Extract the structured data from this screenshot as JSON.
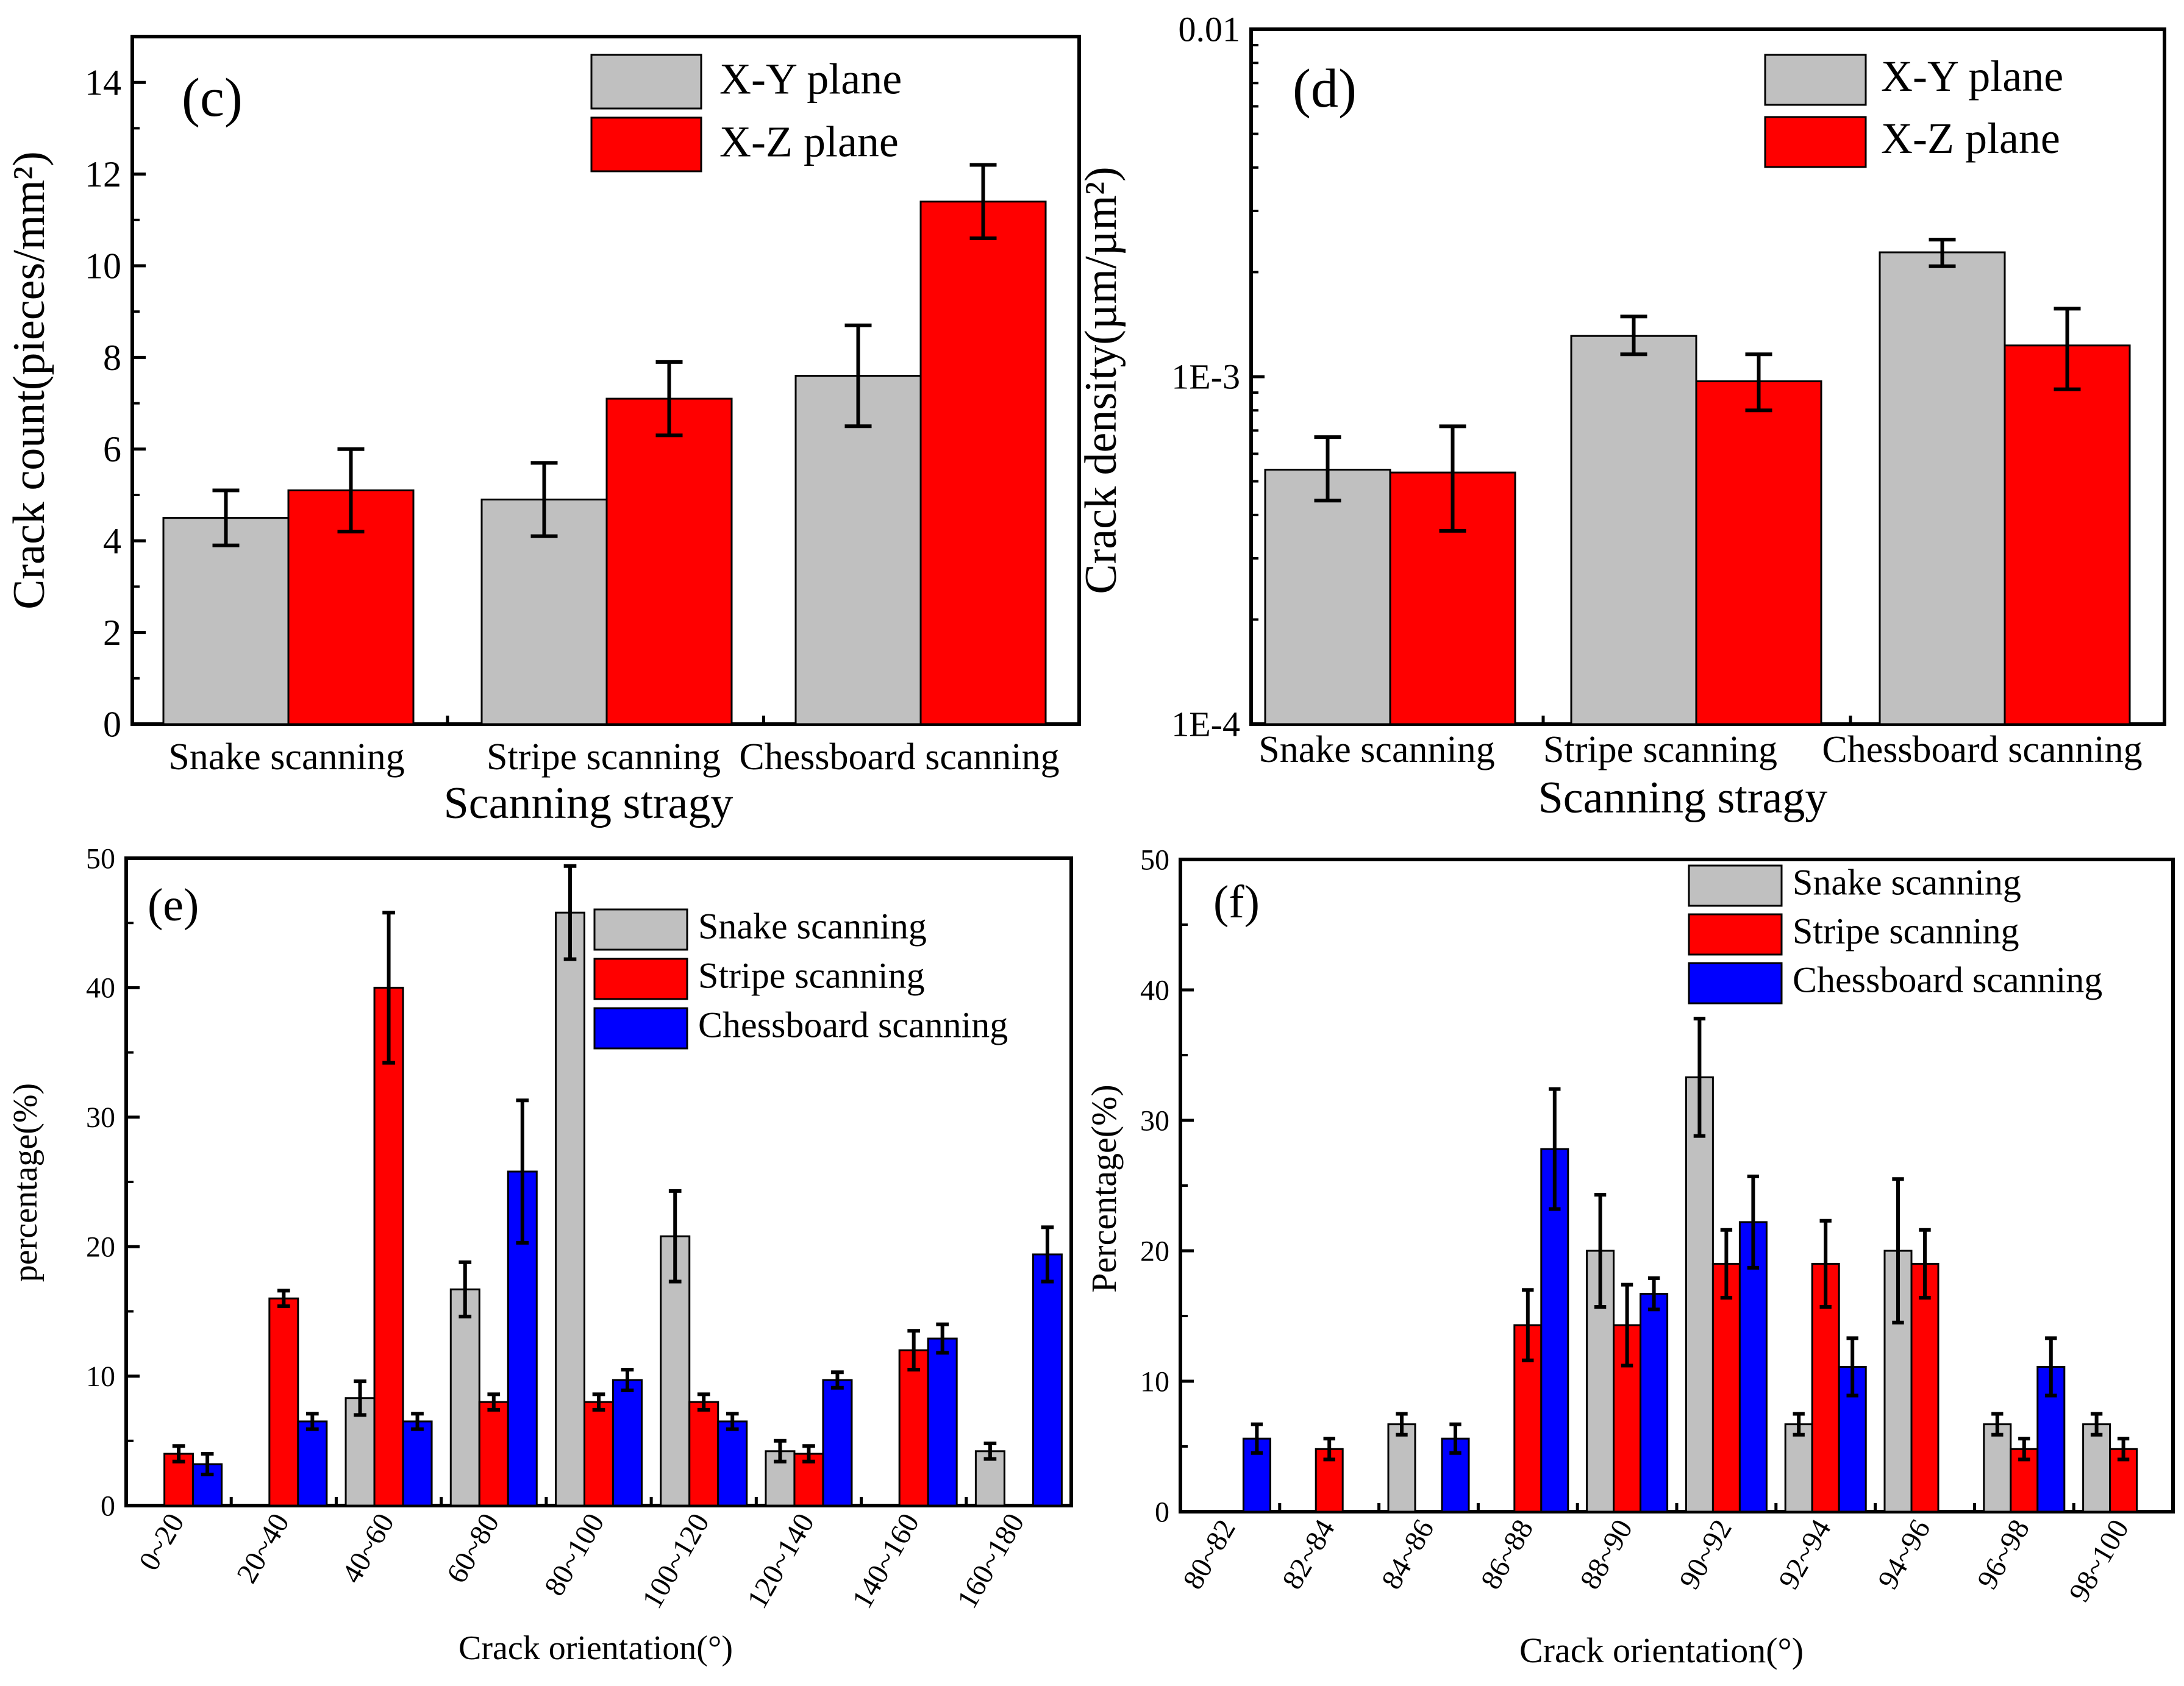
{
  "colors": {
    "gray": "#c0c0c0",
    "red": "#ff0000",
    "blue": "#0000ff",
    "axis": "#000000"
  },
  "chart_data": [
    {
      "id": "c",
      "type": "bar",
      "panel_label": "(c)",
      "categories": [
        "Snake scanning",
        "Stripe scanning",
        "Chessboard scanning"
      ],
      "series": [
        {
          "name": "X-Y plane",
          "color": "gray",
          "values": [
            4.5,
            4.9,
            7.6
          ],
          "errors": [
            0.6,
            0.8,
            1.1
          ]
        },
        {
          "name": "X-Z plane",
          "color": "red",
          "values": [
            5.1,
            7.1,
            11.4
          ],
          "errors": [
            0.9,
            0.8,
            0.8
          ]
        }
      ],
      "xlabel": "Scanning stragy",
      "ylabel": "Crack count(pieces/mm²)",
      "ylim": [
        0,
        15
      ],
      "yscale": "linear",
      "yticks": [
        0,
        2,
        4,
        6,
        8,
        10,
        12,
        14
      ],
      "yticklabels": [
        "0",
        "2",
        "4",
        "6",
        "8",
        "10",
        "12",
        "14"
      ],
      "legend": "top-right"
    },
    {
      "id": "d",
      "type": "bar",
      "panel_label": "(d)",
      "categories": [
        "Snake scanning",
        "Stripe scanning",
        "Chessboard scanning"
      ],
      "series": [
        {
          "name": "X-Y plane",
          "color": "gray",
          "values": [
            0.00054,
            0.00131,
            0.00228
          ],
          "errors_low": [
            0.0001,
            0.00015,
            0.0002
          ],
          "errors_high": [
            0.00013,
            0.00018,
            0.0002
          ]
        },
        {
          "name": "X-Z plane",
          "color": "red",
          "values": [
            0.00053,
            0.00097,
            0.00123
          ],
          "errors_low": [
            0.00017,
            0.00017,
            0.00031
          ],
          "errors_high": [
            0.00019,
            0.00019,
            0.00034
          ]
        }
      ],
      "xlabel": "Scanning stragy",
      "ylabel": "Crack density(µm/µm²)",
      "ylim": [
        0.0001,
        0.01
      ],
      "yscale": "log",
      "yticks": [
        0.0001,
        0.001,
        0.01
      ],
      "yticklabels": [
        "1E-4",
        "1E-3",
        "0.01"
      ],
      "legend": "top-right"
    },
    {
      "id": "e",
      "type": "bar",
      "panel_label": "(e)",
      "categories": [
        "0~20",
        "20~40",
        "40~60",
        "60~80",
        "80~100",
        "100~120",
        "120~140",
        "140~160",
        "160~180"
      ],
      "series": [
        {
          "name": "Snake scanning",
          "color": "gray",
          "values": [
            null,
            null,
            8.3,
            16.7,
            45.8,
            20.8,
            4.2,
            null,
            4.2
          ],
          "errors": [
            0,
            0,
            1.3,
            2.1,
            3.6,
            3.5,
            0.8,
            0,
            0.6
          ]
        },
        {
          "name": "Stripe scanning",
          "color": "red",
          "values": [
            4,
            16,
            40,
            8,
            8,
            8,
            4,
            12,
            null
          ],
          "errors": [
            0.6,
            0.6,
            5.8,
            0.6,
            0.6,
            0.6,
            0.6,
            1.5,
            0
          ]
        },
        {
          "name": "Chessboard scanning",
          "color": "blue",
          "values": [
            3.2,
            6.5,
            6.5,
            25.8,
            9.7,
            6.5,
            9.7,
            12.9,
            19.4
          ],
          "errors": [
            0.8,
            0.6,
            0.6,
            5.5,
            0.8,
            0.6,
            0.6,
            1.1,
            2.1
          ]
        }
      ],
      "xlabel": "Crack orientation(°)",
      "ylabel": "percentage(%)",
      "ylim": [
        0,
        50
      ],
      "yscale": "linear",
      "yticks": [
        0,
        10,
        20,
        30,
        40,
        50
      ],
      "yticklabels": [
        "0",
        "10",
        "20",
        "30",
        "40",
        "50"
      ],
      "legend": "top-right"
    },
    {
      "id": "f",
      "type": "bar",
      "panel_label": "(f)",
      "categories": [
        "80~82",
        "82~84",
        "84~86",
        "86~88",
        "88~90",
        "90~92",
        "92~94",
        "94~96",
        "96~98",
        "98~100"
      ],
      "series": [
        {
          "name": "Snake scanning",
          "color": "gray",
          "values": [
            null,
            null,
            6.7,
            null,
            20,
            33.3,
            6.7,
            20,
            6.7,
            6.7
          ],
          "errors": [
            0,
            0,
            0.8,
            0,
            4.3,
            4.5,
            0.8,
            5.5,
            0.8,
            0.8
          ]
        },
        {
          "name": "Stripe scanning",
          "color": "red",
          "values": [
            null,
            4.8,
            null,
            14.3,
            14.3,
            19,
            19,
            19,
            4.8,
            4.8
          ],
          "errors": [
            0,
            0.8,
            0,
            2.7,
            3.1,
            2.6,
            3.3,
            2.6,
            0.8,
            0.8
          ]
        },
        {
          "name": "Chessboard scanning",
          "color": "blue",
          "values": [
            5.6,
            null,
            5.6,
            27.8,
            16.7,
            22.2,
            11.1,
            null,
            11.1,
            null
          ],
          "errors": [
            1.1,
            0,
            1.1,
            4.6,
            1.2,
            3.5,
            2.2,
            0,
            2.2,
            0
          ]
        }
      ],
      "xlabel": "Crack orientation(°)",
      "ylabel": "Percentage(%)",
      "ylim": [
        0,
        50
      ],
      "yscale": "linear",
      "yticks": [
        0,
        10,
        20,
        30,
        40,
        50
      ],
      "yticklabels": [
        "0",
        "10",
        "20",
        "30",
        "40",
        "50"
      ],
      "legend": "top-right"
    }
  ]
}
